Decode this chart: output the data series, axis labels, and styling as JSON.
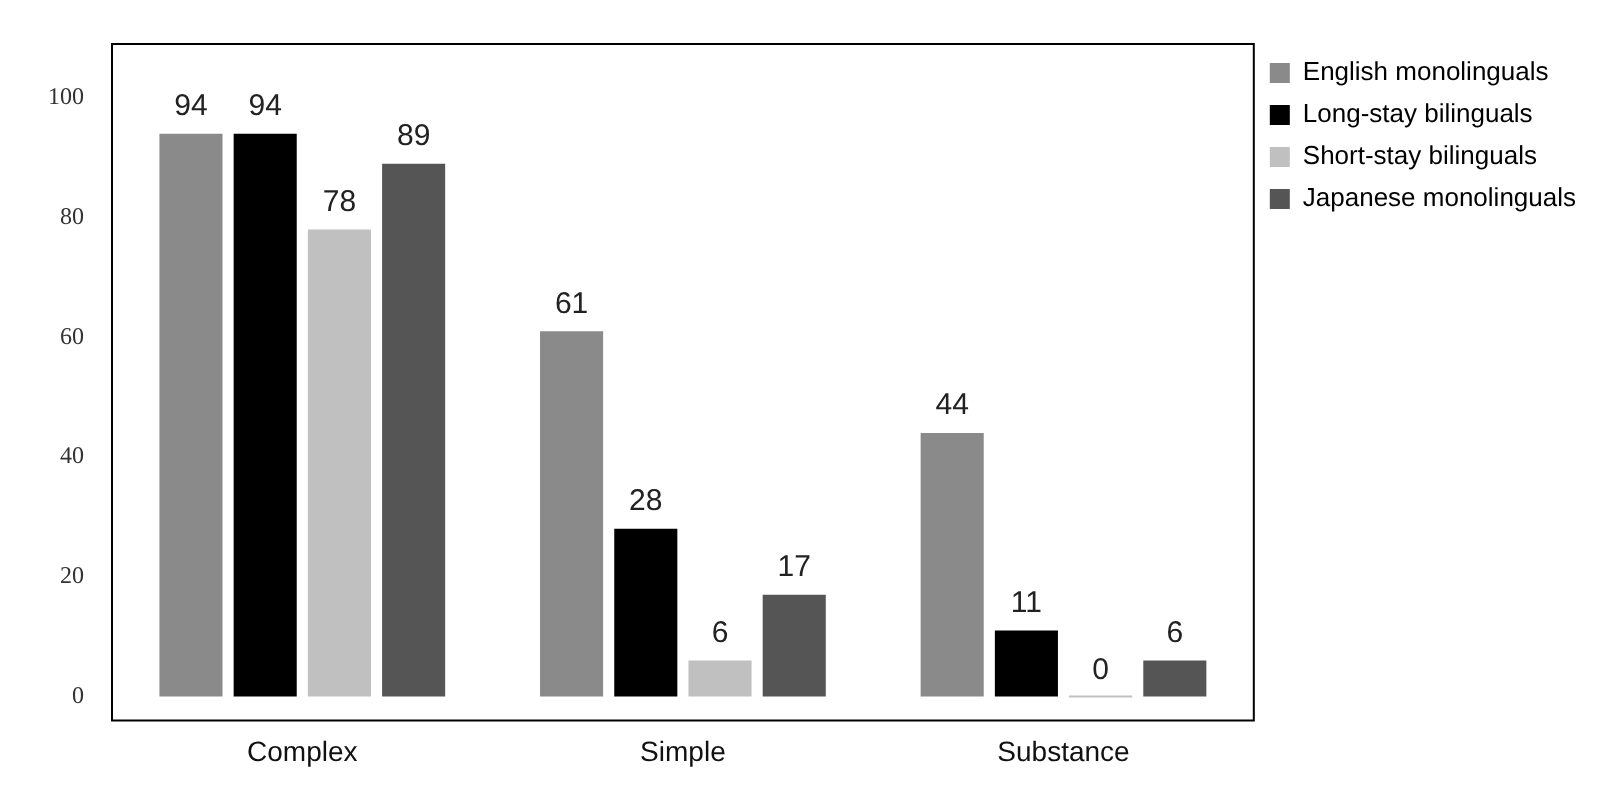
{
  "chart_data": {
    "type": "bar",
    "categories": [
      "Complex",
      "Simple",
      "Substance"
    ],
    "series": [
      {
        "name": "English monolinguals",
        "color": "#8a8a8a",
        "values": [
          94,
          61,
          44
        ]
      },
      {
        "name": "Long-stay bilinguals",
        "color": "#000000",
        "values": [
          94,
          28,
          11
        ]
      },
      {
        "name": "Short-stay bilinguals",
        "color": "#c0c0c0",
        "values": [
          78,
          6,
          0
        ]
      },
      {
        "name": "Japanese monolinguals",
        "color": "#555555",
        "values": [
          89,
          17,
          6
        ]
      }
    ],
    "ylim": [
      -4,
      109
    ],
    "yticks": [
      0,
      20,
      40,
      60,
      80,
      100
    ],
    "grid": false,
    "legend": "right",
    "data_labels": true
  }
}
